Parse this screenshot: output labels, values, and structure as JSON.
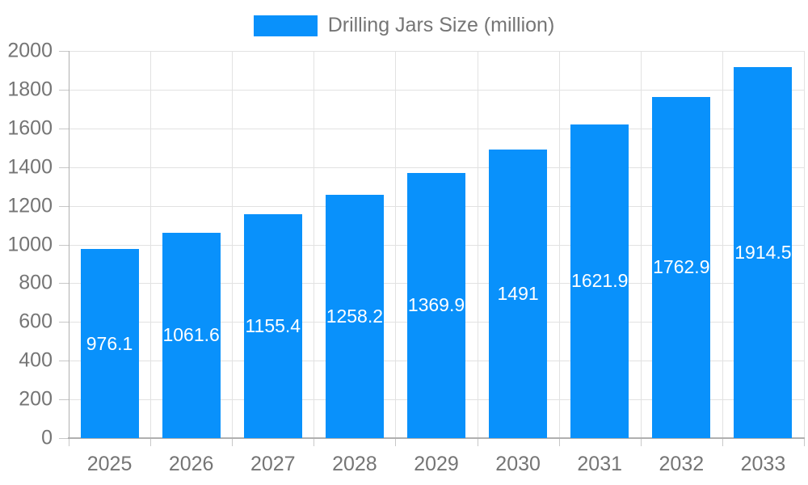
{
  "legend": {
    "label": "Drilling Jars Size (million)"
  },
  "colors": {
    "bar": "#0991fb",
    "grid": "#e2e2e2",
    "axis": "#b0b0b0",
    "tick": "#c8c8c8",
    "axis_text": "#757575",
    "value_text": "#ffffff",
    "background": "#ffffff"
  },
  "chart_data": {
    "type": "bar",
    "title": "Drilling Jars Size (million)",
    "categories": [
      "2025",
      "2026",
      "2027",
      "2028",
      "2029",
      "2030",
      "2031",
      "2032",
      "2033"
    ],
    "values": [
      976.1,
      1061.6,
      1155.4,
      1258.2,
      1369.9,
      1491,
      1621.9,
      1762.9,
      1914.5
    ],
    "value_labels": [
      "976.1",
      "1061.6",
      "1155.4",
      "1258.2",
      "1369.9",
      "1491",
      "1621.9",
      "1762.9",
      "1914.5"
    ],
    "xlabel": "",
    "ylabel": "",
    "ylim": [
      0,
      2000
    ],
    "ytick_step": 200,
    "yticks": [
      0,
      200,
      400,
      600,
      800,
      1000,
      1200,
      1400,
      1600,
      1800,
      2000
    ],
    "grid": true,
    "legend_position": "top",
    "value_label_position": "center-of-bar"
  }
}
